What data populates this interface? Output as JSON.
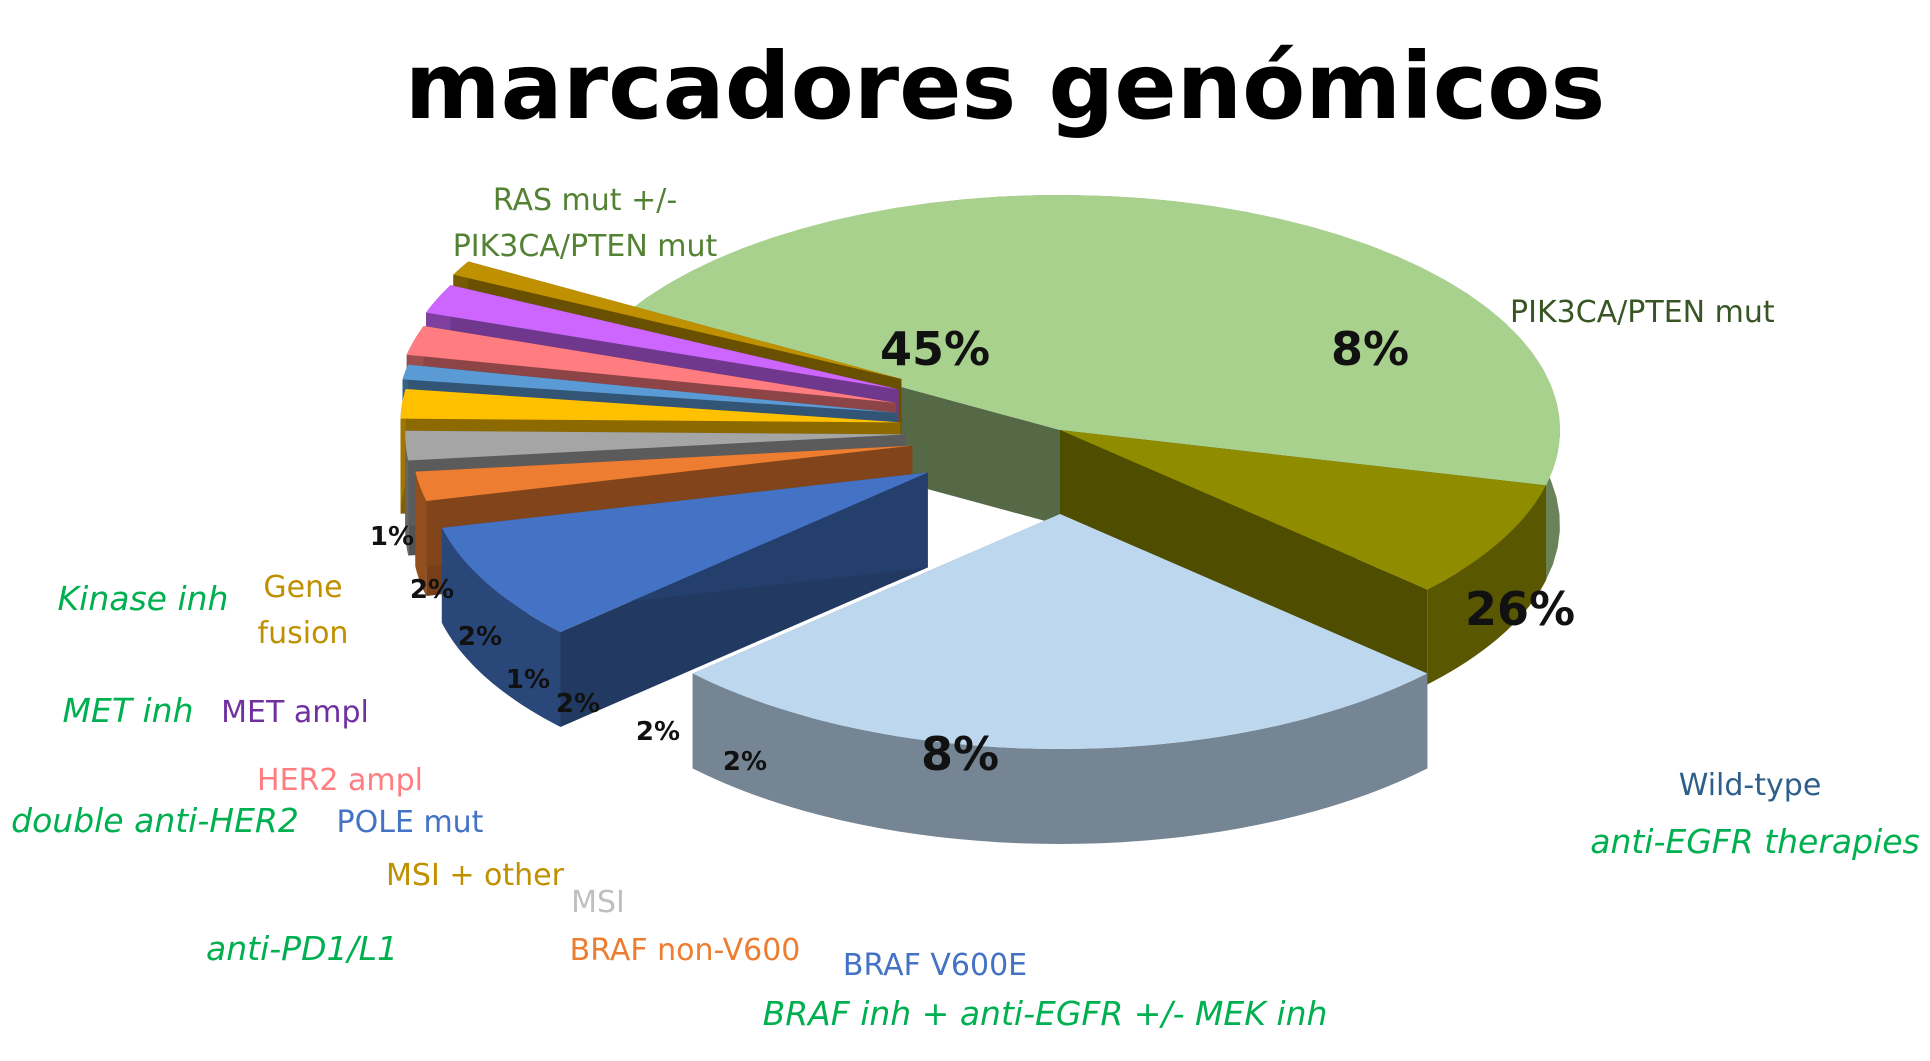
{
  "chart_data": {
    "type": "pie",
    "title": "marcadores genómicos",
    "slices": [
      {
        "label_lines": [
          "RAS mut +/-",
          "PIK3CA/PTEN mut"
        ],
        "value": 45,
        "pct_label": "45%",
        "color": "#a9d18e",
        "label_color": "#548235",
        "therapy": ""
      },
      {
        "label_lines": [
          "PIK3CA/PTEN mut"
        ],
        "value": 8,
        "pct_label": "8%",
        "color": "#8f8c00",
        "label_color": "#375623",
        "therapy": ""
      },
      {
        "label_lines": [
          "Wild-type"
        ],
        "value": 26,
        "pct_label": "26%",
        "color": "#bdd7ee",
        "label_color": "#2e5f8a",
        "therapy": "anti-EGFR therapies"
      },
      {
        "label_lines": [
          "BRAF V600E"
        ],
        "value": 8,
        "pct_label": "8%",
        "color": "#4472c4",
        "label_color": "#4472c4",
        "therapy": "BRAF inh + anti-EGFR +/- MEK inh"
      },
      {
        "label_lines": [
          "BRAF non-V600"
        ],
        "value": 2,
        "pct_label": "2%",
        "color": "#ed7d31",
        "label_color": "#ed7d31",
        "therapy": ""
      },
      {
        "label_lines": [
          "MSI"
        ],
        "value": 2,
        "pct_label": "2%",
        "color": "#a5a5a5",
        "label_color": "#bfbfbf",
        "therapy": ""
      },
      {
        "label_lines": [
          "MSI + other"
        ],
        "value": 2,
        "pct_label": "2%",
        "color": "#ffc000",
        "label_color": "#bf9000",
        "therapy": "anti-PD1/L1"
      },
      {
        "label_lines": [
          "POLE mut"
        ],
        "value": 1,
        "pct_label": "1%",
        "color": "#5b9bd5",
        "label_color": "#4472c4",
        "therapy": ""
      },
      {
        "label_lines": [
          "HER2 ampl"
        ],
        "value": 2,
        "pct_label": "2%",
        "color": "#ff7c80",
        "label_color": "#ff7c80",
        "therapy": "double anti-HER2"
      },
      {
        "label_lines": [
          "MET ampl"
        ],
        "value": 2,
        "pct_label": "2%",
        "color": "#cc66ff",
        "label_color": "#7030a0",
        "therapy": "MET inh"
      },
      {
        "label_lines": [
          "Gene",
          "fusion"
        ],
        "value": 1,
        "pct_label": "1%",
        "color": "#bf9000",
        "label_color": "#bf9000",
        "therapy": "Kinase inh"
      }
    ],
    "therapy_color": "#00b050",
    "legend": "none",
    "note": "3D exploded pie; small slices shown as extruded wedges"
  }
}
